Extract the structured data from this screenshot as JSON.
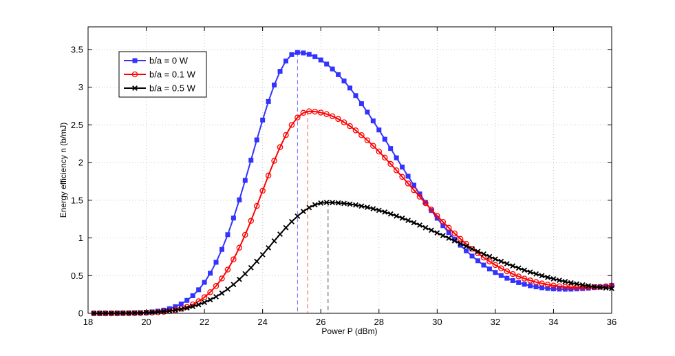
{
  "chart_data": {
    "type": "line",
    "title": "",
    "xlabel": "Power P (dBm)",
    "ylabel": "Energy efficiency n (b/mJ)",
    "xlim": [
      18,
      36
    ],
    "ylim": [
      0,
      3.8
    ],
    "grid": true,
    "legend_position": "top-left",
    "x_ticks": [
      18,
      20,
      22,
      24,
      26,
      28,
      30,
      32,
      34,
      36
    ],
    "x_tick_labels": [
      "18",
      "20",
      "22",
      "24",
      "26",
      "28",
      "30",
      "32",
      "34",
      "36"
    ],
    "y_ticks": [
      0,
      0.5,
      1,
      1.5,
      2,
      2.5,
      3,
      3.5
    ],
    "y_tick_labels": [
      "0",
      "0.5",
      "1",
      "1.5",
      "2",
      "2.5",
      "3",
      "3.5"
    ],
    "x_range": {
      "start": 18.2,
      "end": 36,
      "step": 0.2
    },
    "series": [
      {
        "name": "b/a = 0 W",
        "color": "#3333ff",
        "marker": "square",
        "peak_x": 25.2,
        "peak_y": 3.46,
        "sigma_left": 1.55,
        "sigma_right": 3.3,
        "tail_power": 0.5,
        "end_y": 0.37,
        "optimum_x": 25.2
      },
      {
        "name": "b/a = 0.1 W",
        "color": "#ff0000",
        "marker": "circle",
        "peak_x": 25.6,
        "peak_y": 2.68,
        "sigma_left": 1.6,
        "sigma_right": 3.55,
        "tail_power": 0.5,
        "end_y": 0.365,
        "optimum_x": 25.55
      },
      {
        "name": "b/a = 0.5 W",
        "color": "#000000",
        "marker": "x",
        "peak_x": 26.2,
        "peak_y": 1.47,
        "sigma_left": 1.95,
        "sigma_right": 4.6,
        "tail_power": 0.5,
        "end_y": 0.33,
        "optimum_x": 26.25
      }
    ]
  }
}
